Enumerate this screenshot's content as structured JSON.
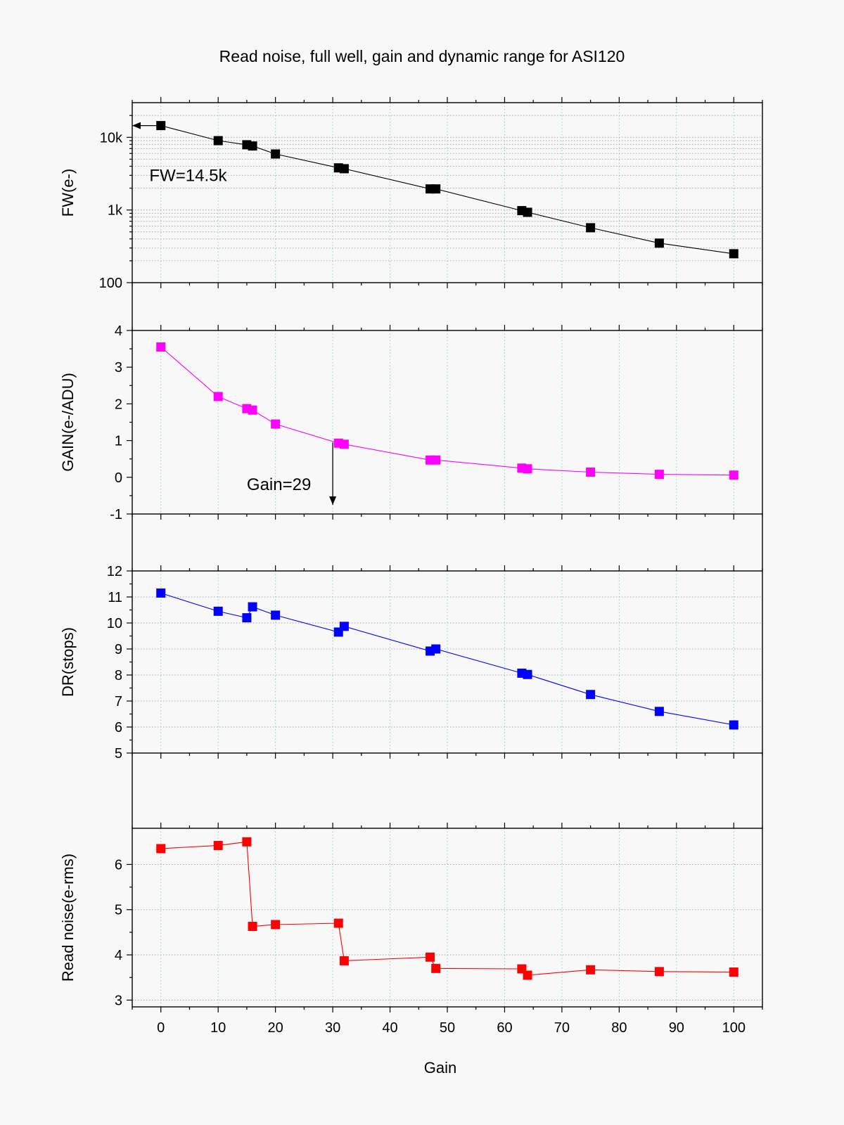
{
  "chart_data": {
    "title": "Read noise, full well, gain and dynamic range for ASI120",
    "xlabel": "Gain",
    "xlim": [
      -5,
      105
    ],
    "x_ticks": [
      "0",
      "10",
      "20",
      "30",
      "40",
      "50",
      "60",
      "70",
      "80",
      "90",
      "100"
    ],
    "panels": [
      {
        "id": "fw",
        "type": "line",
        "ylabel": "FW(e-)",
        "yscale": "log",
        "ylim": [
          100,
          30000
        ],
        "y_ticks": [
          {
            "value": 100,
            "label": "100"
          },
          {
            "value": 1000,
            "label": "1k"
          },
          {
            "value": 10000,
            "label": "10k"
          }
        ],
        "grid": "log-minor",
        "color": "#000000",
        "x": [
          0,
          10,
          15,
          16,
          20,
          31,
          32,
          47,
          48,
          63,
          64,
          75,
          87,
          100
        ],
        "y": [
          14500,
          9000,
          7900,
          7600,
          5900,
          3800,
          3700,
          1950,
          1950,
          980,
          930,
          570,
          350,
          250
        ],
        "annotation": {
          "text": "FW=14.5k",
          "x": -2,
          "y": 2500,
          "arrow_from": [
            0,
            14500
          ],
          "arrow_to": [
            -5,
            14500
          ]
        }
      },
      {
        "id": "gain",
        "type": "line",
        "ylabel": "GAIN(e-/ADU)",
        "yscale": "linear",
        "ylim": [
          -1,
          4
        ],
        "y_ticks": [
          {
            "value": -1,
            "label": "-1"
          },
          {
            "value": 0,
            "label": "0"
          },
          {
            "value": 1,
            "label": "1"
          },
          {
            "value": 2,
            "label": "2"
          },
          {
            "value": 3,
            "label": "3"
          },
          {
            "value": 4,
            "label": "4"
          }
        ],
        "grid": "none",
        "color": "#ff00ff",
        "x": [
          0,
          10,
          15,
          16,
          20,
          31,
          32,
          47,
          48,
          63,
          64,
          75,
          87,
          100
        ],
        "y": [
          3.55,
          2.2,
          1.87,
          1.83,
          1.45,
          0.93,
          0.9,
          0.47,
          0.47,
          0.25,
          0.23,
          0.14,
          0.08,
          0.06
        ],
        "annotation": {
          "text": "Gain=29",
          "x": 15,
          "y": -0.35,
          "arrow_from": [
            30,
            0.95
          ],
          "arrow_to": [
            30,
            -0.75
          ]
        }
      },
      {
        "id": "dr",
        "type": "line",
        "ylabel": "DR(stops)",
        "yscale": "linear",
        "ylim": [
          5,
          12
        ],
        "y_ticks": [
          {
            "value": 5,
            "label": "5"
          },
          {
            "value": 6,
            "label": "6"
          },
          {
            "value": 7,
            "label": "7"
          },
          {
            "value": 8,
            "label": "8"
          },
          {
            "value": 9,
            "label": "9"
          },
          {
            "value": 10,
            "label": "10"
          },
          {
            "value": 11,
            "label": "11"
          },
          {
            "value": 12,
            "label": "12"
          }
        ],
        "grid": "major",
        "color": "#0000ff",
        "x": [
          0,
          10,
          15,
          16,
          20,
          31,
          32,
          47,
          48,
          63,
          64,
          75,
          87,
          100
        ],
        "y": [
          11.15,
          10.45,
          10.2,
          10.62,
          10.3,
          9.65,
          9.87,
          8.92,
          9.0,
          8.07,
          8.02,
          7.25,
          6.6,
          6.08
        ]
      },
      {
        "id": "rn",
        "type": "line",
        "ylabel": "Read noise(e-rms)",
        "yscale": "linear",
        "ylim": [
          2.85,
          6.8
        ],
        "y_ticks": [
          {
            "value": 3,
            "label": "3"
          },
          {
            "value": 4,
            "label": "4"
          },
          {
            "value": 5,
            "label": "5"
          },
          {
            "value": 6,
            "label": "6"
          }
        ],
        "grid": "major",
        "color": "#ff0000",
        "x": [
          0,
          10,
          15,
          16,
          20,
          31,
          32,
          47,
          48,
          63,
          64,
          75,
          87,
          100
        ],
        "y": [
          6.35,
          6.42,
          6.5,
          4.63,
          4.67,
          4.7,
          3.87,
          3.95,
          3.7,
          3.69,
          3.55,
          3.67,
          3.63,
          3.62
        ]
      }
    ]
  }
}
